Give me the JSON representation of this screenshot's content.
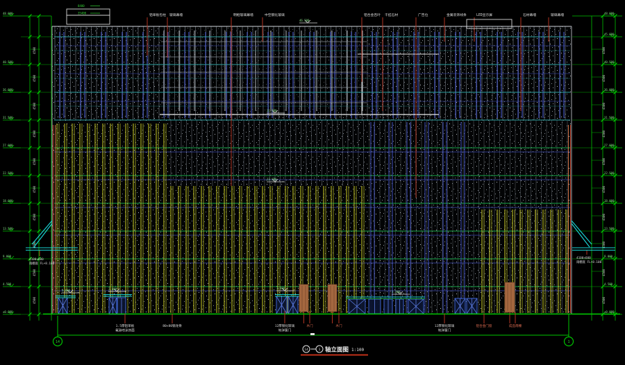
{
  "colors": {
    "bg": "#000000",
    "dim_green": "#00c400",
    "level_text_green": "#8ae08a",
    "teal": "#2e9f9f",
    "floor_green": "#17a347",
    "blue": "#4859cf",
    "grey_mullion": "#868d96",
    "white_frame": "#c6ccd4",
    "yellow": "#d9d926",
    "red_leader": "#b23422",
    "edge_red": "#c04028",
    "edge_orange": "#e07b4a",
    "cyan": "#19d2d2",
    "door_brown": "#a4673f",
    "label_white": "#dcdcdc",
    "label_red": "#d4684e",
    "title_underline": "#c03018"
  },
  "title": {
    "text": "轴立面图",
    "scale": "1:100"
  },
  "axis_bubbles": {
    "left": "14",
    "right": "1"
  },
  "top_labels": [
    "铝单板包柱",
    "玻璃幕墙",
    "明框玻璃幕墙",
    "中空钢化玻璃",
    "铝合金百叶",
    "干挂石材",
    "广告位",
    "金属装饰线条",
    "LED显示屏",
    "石材幕墙",
    "玻璃幕墙"
  ],
  "bottom_labels": [
    [
      "1.5厚铝单板",
      "氟碳喷涂饰面"
    ],
    [
      "80×80钢龙骨"
    ],
    [
      "12厚钢化玻璃",
      "地弹簧门"
    ],
    [
      "木门"
    ],
    [
      "木门"
    ],
    [
      "12厚钢化玻璃",
      "地弹簧门"
    ],
    [
      "铝合金门窗"
    ],
    [
      "成品雨棚"
    ]
  ],
  "canopy_label": [
    "4100×600",
    "雨棚底 FL+8.100"
  ],
  "levels_left": [
    "48.000",
    "40.500",
    "36.000",
    "31.500",
    "27.000",
    "22.500",
    "18.000",
    "13.500",
    "9.000",
    "4.500",
    "±0.000"
  ],
  "levels_right": [
    "48.000",
    "45.000",
    "40.500",
    "36.000",
    "31.500",
    "27.000",
    "22.500",
    "18.000",
    "13.500",
    "9.000",
    "4.500",
    "±0.000"
  ],
  "facade_flags": [
    "46.500",
    "31.500",
    "22.500",
    "3.600",
    "3.600",
    "3.600",
    "3.300"
  ],
  "floor_dim": "4500",
  "legend_notes": [
    "8400",
    "35400"
  ]
}
